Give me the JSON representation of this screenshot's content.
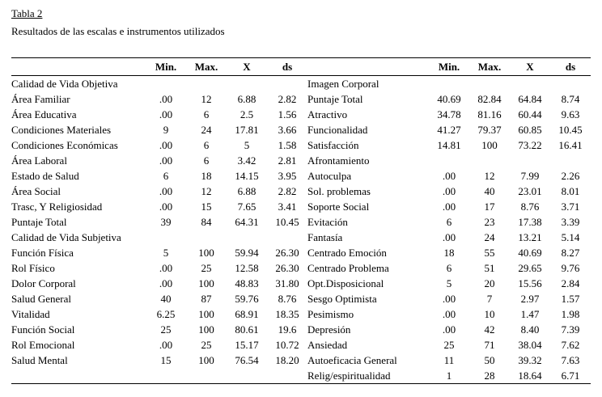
{
  "title": "Tabla 2",
  "subtitle": "Resultados de las escalas e instrumentos utilizados",
  "columns": [
    "Min.",
    "Max.",
    "X",
    "ds"
  ],
  "table": {
    "left_rows": [
      [
        "Calidad de Vida Objetiva",
        "",
        "",
        "",
        ""
      ],
      [
        "Área Familiar",
        ".00",
        "12",
        "6.88",
        "2.82"
      ],
      [
        "Área Educativa",
        ".00",
        "6",
        "2.5",
        "1.56"
      ],
      [
        "Condiciones Materiales",
        "9",
        "24",
        "17.81",
        "3.66"
      ],
      [
        "Condiciones Económicas",
        ".00",
        "6",
        "5",
        "1.58"
      ],
      [
        "Área Laboral",
        ".00",
        "6",
        "3.42",
        "2.81"
      ],
      [
        "Estado de Salud",
        "6",
        "18",
        "14.15",
        "3.95"
      ],
      [
        "Área Social",
        ".00",
        "12",
        "6.88",
        "2.82"
      ],
      [
        "Trasc, Y Religiosidad",
        ".00",
        "15",
        "7.65",
        "3.41"
      ],
      [
        "Puntaje Total",
        "39",
        "84",
        "64.31",
        "10.45"
      ],
      [
        "Calidad de Vida Subjetiva",
        "",
        "",
        "",
        ""
      ],
      [
        "Función Física",
        "5",
        "100",
        "59.94",
        "26.30"
      ],
      [
        "Rol Físico",
        ".00",
        "25",
        "12.58",
        "26.30"
      ],
      [
        "Dolor Corporal",
        ".00",
        "100",
        "48.83",
        "31.80"
      ],
      [
        "Salud General",
        "40",
        "87",
        "59.76",
        "8.76"
      ],
      [
        "Vitalidad",
        "6.25",
        "100",
        "68.91",
        "18.35"
      ],
      [
        "Función Social",
        "25",
        "100",
        "80.61",
        "19.6"
      ],
      [
        "Rol Emocional",
        ".00",
        "25",
        "15.17",
        "10.72"
      ],
      [
        "Salud Mental",
        "15",
        "100",
        "76.54",
        "18.20"
      ],
      [
        "",
        "",
        "",
        "",
        ""
      ]
    ],
    "right_rows": [
      [
        "Imagen Corporal",
        "",
        "",
        "",
        ""
      ],
      [
        "Puntaje Total",
        "40.69",
        "82.84",
        "64.84",
        "8.74"
      ],
      [
        "Atractivo",
        "34.78",
        "81.16",
        "60.44",
        "9.63"
      ],
      [
        "Funcionalidad",
        "41.27",
        "79.37",
        "60.85",
        "10.45"
      ],
      [
        "Satisfacción",
        "14.81",
        "100",
        "73.22",
        "16.41"
      ],
      [
        "Afrontamiento",
        "",
        "",
        "",
        ""
      ],
      [
        "Autoculpa",
        ".00",
        "12",
        "7.99",
        "2.26"
      ],
      [
        "Sol. problemas",
        ".00",
        "40",
        "23.01",
        "8.01"
      ],
      [
        "Soporte Social",
        ".00",
        "17",
        "8.76",
        "3.71"
      ],
      [
        "Evitación",
        "6",
        "23",
        "17.38",
        "3.39"
      ],
      [
        "Fantasía",
        ".00",
        "24",
        "13.21",
        "5.14"
      ],
      [
        "Centrado Emoción",
        "18",
        "55",
        "40.69",
        "8.27"
      ],
      [
        "Centrado Problema",
        "6",
        "51",
        "29.65",
        "9.76"
      ],
      [
        "Opt.Disposicional",
        "5",
        "20",
        "15.56",
        "2.84"
      ],
      [
        "Sesgo Optimista",
        ".00",
        "7",
        "2.97",
        "1.57"
      ],
      [
        "Pesimismo",
        ".00",
        "10",
        "1.47",
        "1.98"
      ],
      [
        "Depresión",
        ".00",
        "42",
        "8.40",
        "7.39"
      ],
      [
        "Ansiedad",
        "25",
        "71",
        "38.04",
        "7.62"
      ],
      [
        "Autoeficacia General",
        "11",
        "50",
        "39.32",
        "7.63"
      ],
      [
        "Relig/espiritualidad",
        "1",
        "28",
        "18.64",
        "6.71"
      ]
    ]
  }
}
